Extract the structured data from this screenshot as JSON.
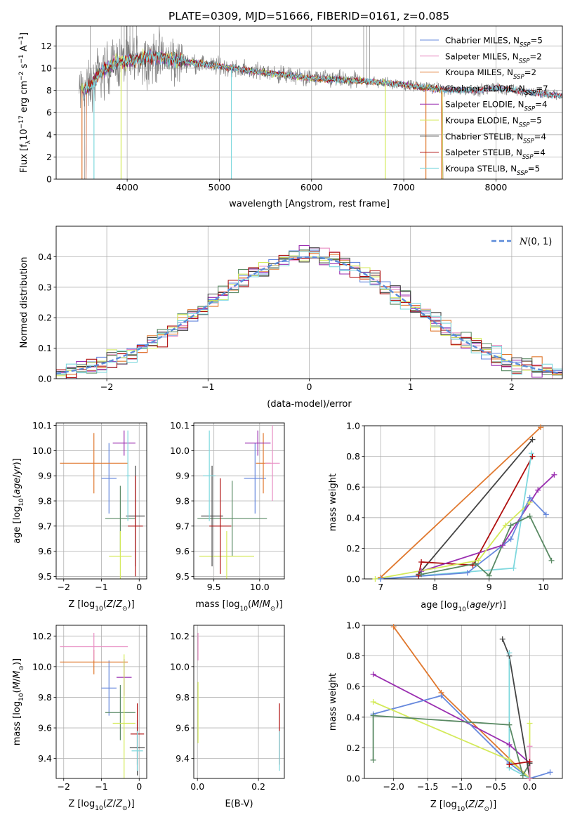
{
  "figure_title": "PLATE=0309, MJD=51666, FIBERID=0161, z=0.085",
  "colors": {
    "Chabrier MILES": "#6688dd",
    "Salpeter MILES": "#e88fc4",
    "Kroupa MILES": "#e0782e",
    "Chabrier ELODIE": "#5a8a64",
    "Salpeter ELODIE": "#9a2eb0",
    "Kroupa ELODIE": "#d4ea5a",
    "Chabrier STELIB": "#444444",
    "Salpeter STELIB": "#b01010",
    "Kroupa STELIB": "#7fd8de",
    "data": "#808080",
    "normal": "#5b8bd9"
  },
  "chart_data": [
    {
      "id": "spectrum",
      "type": "line",
      "title": "",
      "xlabel": "wavelength [Angstrom, rest frame]",
      "ylabel": "Flux [f_λ10^-17 erg cm^-2 s^-1 A^-1]",
      "xlim": [
        3230,
        8720
      ],
      "ylim": [
        0,
        13.8
      ],
      "xticks": [
        4000,
        5000,
        6000,
        7000,
        8000
      ],
      "yticks": [
        0,
        2,
        4,
        6,
        8,
        10,
        12
      ],
      "legend_position": "top-right",
      "legend": [
        {
          "base": "Chabrier MILES, N",
          "sub": "SSP",
          "tail": "=5"
        },
        {
          "base": "Salpeter MILES, N",
          "sub": "SSP",
          "tail": "=2"
        },
        {
          "base": "Kroupa MILES, N",
          "sub": "SSP",
          "tail": "=2"
        },
        {
          "base": "Chabrier ELODIE, N",
          "sub": "SSP",
          "tail": "=7"
        },
        {
          "base": "Salpeter ELODIE, N",
          "sub": "SSP",
          "tail": "=4"
        },
        {
          "base": "Kroupa ELODIE, N",
          "sub": "SSP",
          "tail": "=5"
        },
        {
          "base": "Chabrier STELIB, N",
          "sub": "SSP",
          "tail": "=4"
        },
        {
          "base": "Salpeter STELIB, N",
          "sub": "SSP",
          "tail": "=4"
        },
        {
          "base": "Kroupa STELIB, N",
          "sub": "SSP",
          "tail": "=5"
        }
      ],
      "continuum": {
        "x": [
          3500,
          3600,
          3700,
          3800,
          3900,
          4000,
          4100,
          4200,
          4300,
          4400,
          4500,
          4700,
          5000,
          5300,
          5600,
          6000,
          6400,
          6800,
          7000,
          7200,
          7400,
          7600,
          7800,
          8000,
          8200,
          8400,
          8600,
          8720
        ],
        "y": [
          8.0,
          8.3,
          9.5,
          10.2,
          10.5,
          10.6,
          10.8,
          11.0,
          11.0,
          10.9,
          10.7,
          10.5,
          10.2,
          9.8,
          9.5,
          9.1,
          8.9,
          8.7,
          8.5,
          8.3,
          8.1,
          8.0,
          8.0,
          8.2,
          8.0,
          7.8,
          7.6,
          7.5
        ]
      },
      "dips": [
        3510,
        3640,
        3934,
        5130,
        6800,
        7240,
        7410
      ]
    },
    {
      "id": "residuals",
      "type": "step",
      "xlabel": "(data-model)/error",
      "ylabel": "Normed distribution",
      "xlim": [
        -2.5,
        2.5
      ],
      "ylim": [
        0,
        0.5
      ],
      "xticks": [
        -2,
        -1,
        0,
        1,
        2
      ],
      "yticks": [
        0.0,
        0.1,
        0.2,
        0.3,
        0.4
      ],
      "legend_label": "N(0,1)",
      "bin_width": 0.1
    },
    {
      "id": "age_vs_Z",
      "type": "errorbar",
      "xlabel": "Z [log10(Z/Z⊙)]",
      "ylabel": "age  [log10(age/yr)]",
      "xlim": [
        -2.2,
        0.2
      ],
      "ylim": [
        9.49,
        10.11
      ],
      "xticks": [
        -2,
        -1,
        0
      ],
      "yticks": [
        9.5,
        9.6,
        9.7,
        9.8,
        9.9,
        10.0,
        10.1
      ],
      "points": [
        {
          "model": "Chabrier MILES",
          "x": -0.8,
          "y": 9.89,
          "xerr": 0.2,
          "yerr": 0.14
        },
        {
          "model": "Kroupa MILES",
          "x": -1.2,
          "y": 9.95,
          "xerr": 0.9,
          "yerr": 0.12
        },
        {
          "model": "Salpeter ELODIE",
          "x": -0.4,
          "y": 10.03,
          "xerr": 0.3,
          "yerr": 0.05
        },
        {
          "model": "Chabrier ELODIE",
          "x": -0.5,
          "y": 9.73,
          "xerr": 0.4,
          "yerr": 0.13
        },
        {
          "model": "Kroupa ELODIE",
          "x": -0.5,
          "y": 9.58,
          "xerr": 0.3,
          "yerr": 0.1
        },
        {
          "model": "Chabrier STELIB",
          "x": -0.1,
          "y": 9.74,
          "xerr": 0.25,
          "yerr": 0.2
        },
        {
          "model": "Salpeter STELIB",
          "x": -0.1,
          "y": 9.7,
          "xerr": 0.2,
          "yerr": 0.2
        },
        {
          "model": "Kroupa STELIB",
          "x": -0.3,
          "y": 9.9,
          "xerr": 0.05,
          "yerr": 0.18
        }
      ]
    },
    {
      "id": "age_vs_mass",
      "type": "errorbar",
      "xlabel": "mass [log10(M/M⊙)]",
      "ylabel": "",
      "xlim": [
        9.28,
        10.27
      ],
      "ylim": [
        9.49,
        10.11
      ],
      "xticks": [
        9.5,
        10.0
      ],
      "yticks": [
        9.5,
        9.6,
        9.7,
        9.8,
        9.9,
        10.0,
        10.1
      ],
      "points": [
        {
          "model": "Chabrier MILES",
          "x": 9.95,
          "y": 9.89,
          "xerr": 0.12,
          "yerr": 0.14
        },
        {
          "model": "Kroupa MILES",
          "x": 10.04,
          "y": 9.95,
          "xerr": 0.08,
          "yerr": 0.12
        },
        {
          "model": "Salpeter MILES",
          "x": 10.14,
          "y": 9.95,
          "xerr": 0.08,
          "yerr": 0.15
        },
        {
          "model": "Salpeter ELODIE",
          "x": 9.98,
          "y": 10.03,
          "xerr": 0.14,
          "yerr": 0.05
        },
        {
          "model": "Chabrier ELODIE",
          "x": 9.7,
          "y": 9.73,
          "xerr": 0.38,
          "yerr": 0.15
        },
        {
          "model": "Kroupa ELODIE",
          "x": 9.64,
          "y": 9.58,
          "xerr": 0.3,
          "yerr": 0.1
        },
        {
          "model": "Chabrier STELIB",
          "x": 9.48,
          "y": 9.74,
          "xerr": 0.12,
          "yerr": 0.2
        },
        {
          "model": "Salpeter STELIB",
          "x": 9.57,
          "y": 9.7,
          "xerr": 0.12,
          "yerr": 0.19
        },
        {
          "model": "Kroupa STELIB",
          "x": 9.45,
          "y": 9.9,
          "xerr": 0.07,
          "yerr": 0.18
        }
      ]
    },
    {
      "id": "weight_vs_age",
      "type": "line",
      "xlabel": "age  [log10(age/yr)]",
      "ylabel": "mass weight",
      "xlim": [
        6.7,
        10.35
      ],
      "ylim": [
        0,
        1.0
      ],
      "xticks": [
        7,
        8,
        9,
        10
      ],
      "yticks": [
        0.0,
        0.2,
        0.4,
        0.6,
        0.8,
        1.0
      ],
      "series": [
        {
          "model": "Kroupa MILES",
          "x": [
            7.0,
            9.95
          ],
          "y": [
            0.01,
            0.99
          ]
        },
        {
          "model": "Chabrier STELIB",
          "x": [
            7.7,
            9.8
          ],
          "y": [
            0.03,
            0.91
          ]
        },
        {
          "model": "Salpeter STELIB",
          "x": [
            7.7,
            7.75,
            8.7,
            9.8
          ],
          "y": [
            0.02,
            0.11,
            0.09,
            0.8
          ]
        },
        {
          "model": "Kroupa STELIB",
          "x": [
            7.0,
            9.45,
            9.78
          ],
          "y": [
            0.0,
            0.07,
            0.82
          ]
        },
        {
          "model": "Salpeter ELODIE",
          "x": [
            7.75,
            9.25,
            9.9,
            10.2
          ],
          "y": [
            0.05,
            0.22,
            0.58,
            0.68
          ]
        },
        {
          "model": "Kroupa ELODIE",
          "x": [
            6.9,
            8.8,
            9.3,
            9.75
          ],
          "y": [
            0.0,
            0.12,
            0.35,
            0.5
          ]
        },
        {
          "model": "Chabrier MILES",
          "x": [
            7.0,
            8.6,
            9.4,
            9.75,
            10.05
          ],
          "y": [
            0.0,
            0.04,
            0.26,
            0.53,
            0.42
          ]
        },
        {
          "model": "Chabrier ELODIE",
          "x": [
            7.75,
            8.75,
            9.0,
            9.4,
            9.75,
            10.15
          ],
          "y": [
            0.03,
            0.1,
            0.02,
            0.35,
            0.41,
            0.12
          ]
        }
      ]
    },
    {
      "id": "mass_vs_Z",
      "type": "errorbar",
      "xlabel": "Z [log10(Z/Z⊙)]",
      "ylabel": "mass [log10(M/M⊙)]",
      "xlim": [
        -2.2,
        0.2
      ],
      "ylim": [
        9.27,
        10.27
      ],
      "xticks": [
        -2,
        -1,
        0
      ],
      "yticks": [
        9.4,
        9.6,
        9.8,
        10.0,
        10.2
      ],
      "points": [
        {
          "model": "Chabrier MILES",
          "x": -0.8,
          "y": 9.86,
          "xerr": 0.2,
          "yerr": 0.18
        },
        {
          "model": "Kroupa MILES",
          "x": -1.2,
          "y": 10.03,
          "xerr": 0.9,
          "yerr": 0.08
        },
        {
          "model": "Salpeter MILES",
          "x": -1.2,
          "y": 10.13,
          "xerr": 0.9,
          "yerr": 0.09
        },
        {
          "model": "Salpeter ELODIE",
          "x": -0.4,
          "y": 9.93,
          "xerr": 0.2,
          "yerr": 0.12
        },
        {
          "model": "Chabrier ELODIE",
          "x": -0.5,
          "y": 9.7,
          "xerr": 0.4,
          "yerr": 0.18
        },
        {
          "model": "Kroupa ELODIE",
          "x": -0.4,
          "y": 9.63,
          "xerr": 0.3,
          "yerr": 0.45
        },
        {
          "model": "Chabrier STELIB",
          "x": -0.05,
          "y": 9.47,
          "xerr": 0.2,
          "yerr": 0.18
        },
        {
          "model": "Salpeter STELIB",
          "x": -0.05,
          "y": 9.56,
          "xerr": 0.18,
          "yerr": 0.2
        },
        {
          "model": "Kroupa STELIB",
          "x": -0.05,
          "y": 9.45,
          "xerr": 0.15,
          "yerr": 0.13
        }
      ]
    },
    {
      "id": "mass_vs_ebv",
      "type": "errorbar",
      "xlabel": "E(B-V)",
      "ylabel": "",
      "xlim": [
        -0.012,
        0.285
      ],
      "ylim": [
        9.27,
        10.27
      ],
      "xticks": [
        0.0,
        0.2
      ],
      "yticks": [
        9.4,
        9.6,
        9.8,
        10.0,
        10.2
      ],
      "points": [
        {
          "model": "Salpeter MILES",
          "x": 0.002,
          "y": 10.13,
          "xerr": 0.001,
          "yerr": 0.09
        },
        {
          "model": "Kroupa ELODIE",
          "x": 0.002,
          "y": 9.7,
          "xerr": 0.001,
          "yerr": 0.2
        },
        {
          "model": "Salpeter STELIB",
          "x": 0.269,
          "y": 9.56,
          "xerr": 0.001,
          "yerr": 0.2
        },
        {
          "model": "Kroupa STELIB",
          "x": 0.269,
          "y": 9.45,
          "xerr": 0.001,
          "yerr": 0.13
        }
      ]
    },
    {
      "id": "weight_vs_Z",
      "type": "line",
      "xlabel": "Z [log10(Z/Z⊙)]",
      "ylabel": "mass weight",
      "xlim": [
        -2.43,
        0.48
      ],
      "ylim": [
        0,
        1.0
      ],
      "xticks": [
        -2.0,
        -1.5,
        -1.0,
        -0.5,
        0.0
      ],
      "yticks": [
        0.0,
        0.2,
        0.4,
        0.6,
        0.8,
        1.0
      ],
      "series": [
        {
          "model": "Kroupa MILES",
          "x": [
            -2.0,
            -1.3,
            0.0
          ],
          "y": [
            0.99,
            0.56,
            0.0
          ]
        },
        {
          "model": "Salpeter ELODIE",
          "x": [
            -2.3,
            -0.3,
            0.0
          ],
          "y": [
            0.68,
            0.22,
            0.1
          ]
        },
        {
          "model": "Chabrier MILES",
          "x": [
            -2.3,
            -1.3,
            -0.3,
            0.0,
            0.3
          ],
          "y": [
            0.42,
            0.54,
            0.1,
            0.0,
            0.04
          ]
        },
        {
          "model": "Kroupa ELODIE",
          "x": [
            -2.3,
            -0.3,
            0.0,
            0.0
          ],
          "y": [
            0.5,
            0.12,
            0.0,
            0.36
          ]
        },
        {
          "model": "Chabrier ELODIE",
          "x": [
            -2.3,
            -2.3,
            -0.3,
            -0.1,
            0.0
          ],
          "y": [
            0.12,
            0.41,
            0.35,
            0.02,
            0.1
          ]
        },
        {
          "model": "Chabrier STELIB",
          "x": [
            -0.4,
            -0.3,
            0.0,
            0.0
          ],
          "y": [
            0.91,
            0.8,
            0.0,
            0.1
          ]
        },
        {
          "model": "Kroupa STELIB",
          "x": [
            -0.3,
            -0.3,
            0.0
          ],
          "y": [
            0.82,
            0.07,
            0.0
          ]
        },
        {
          "model": "Salpeter STELIB",
          "x": [
            -0.3,
            0.0,
            0.0
          ],
          "y": [
            0.09,
            0.11,
            0.0
          ]
        },
        {
          "model": "Salpeter MILES",
          "x": [
            0.0,
            0.0
          ],
          "y": [
            0.21,
            0.0
          ]
        }
      ]
    }
  ]
}
